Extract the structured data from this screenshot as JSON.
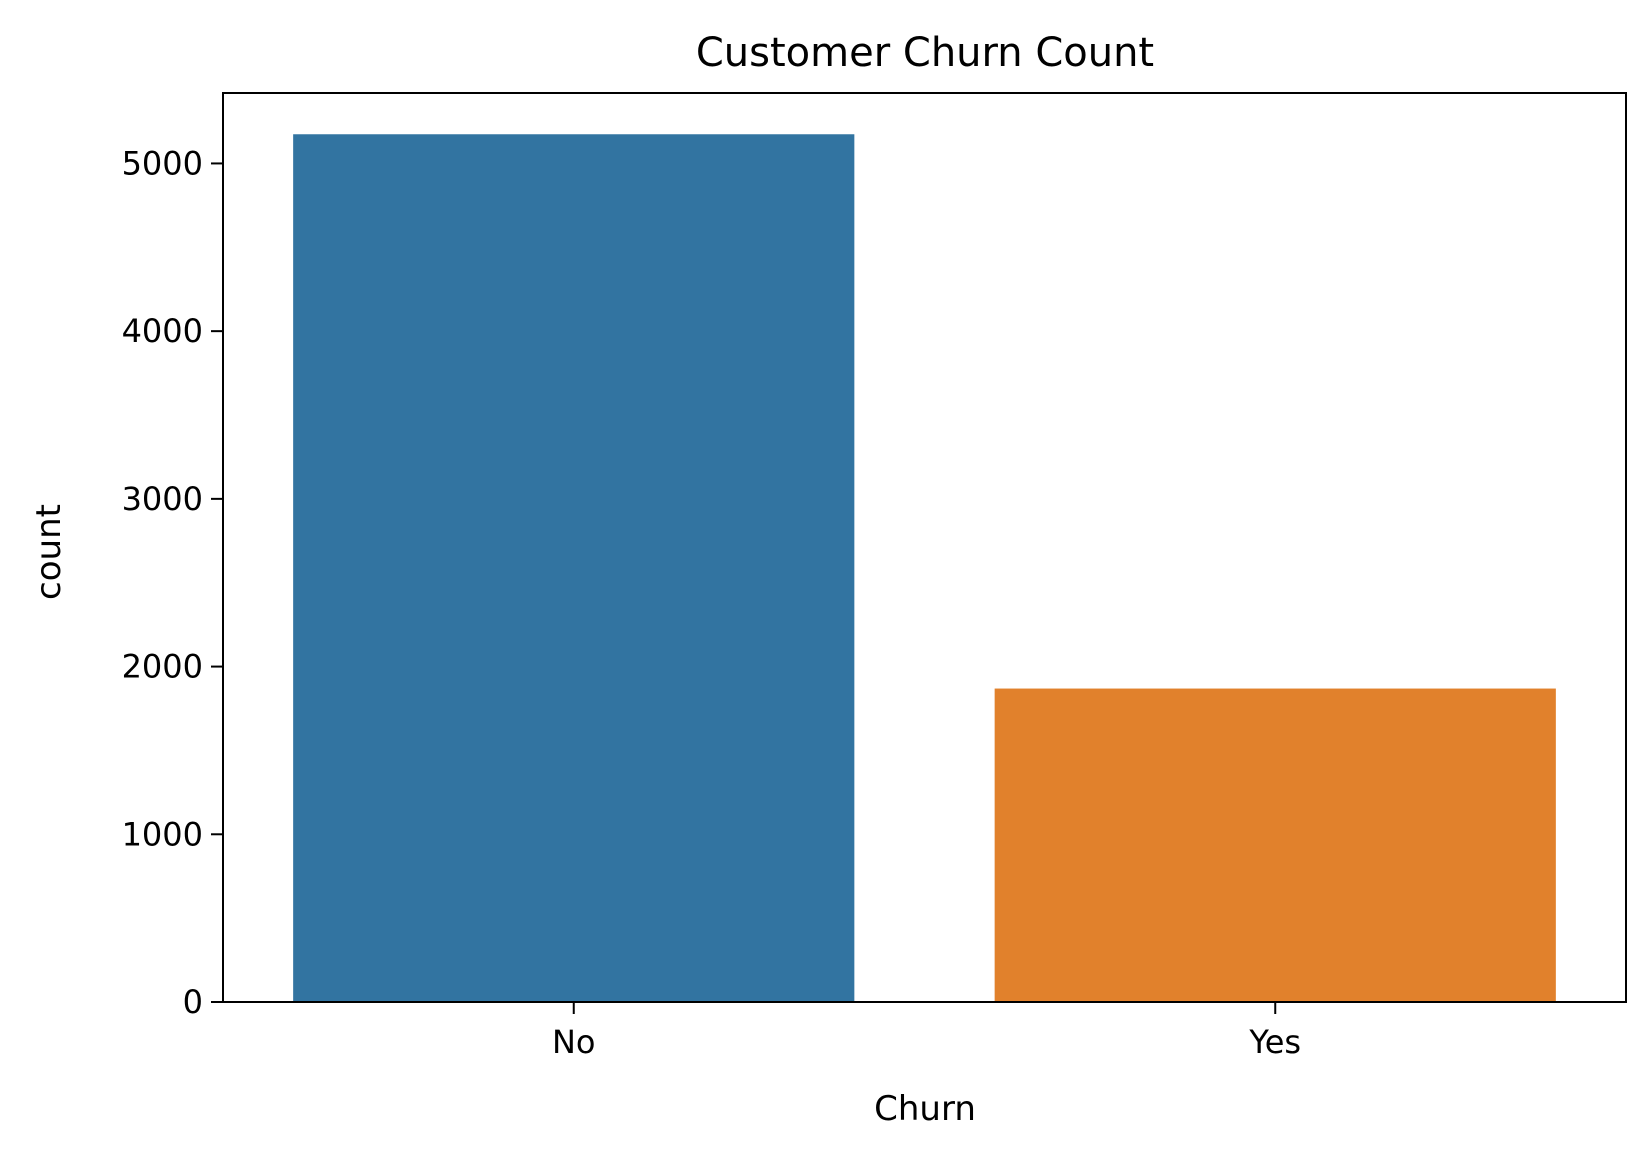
{
  "chart_data": {
    "type": "bar",
    "title": "Customer Churn Count",
    "xlabel": "Churn",
    "ylabel": "count",
    "categories": [
      "No",
      "Yes"
    ],
    "values": [
      5174,
      1869
    ],
    "colors": [
      "#3274a1",
      "#e1812c"
    ],
    "ylim": [
      0,
      5420
    ],
    "yticks": [
      0,
      1000,
      2000,
      3000,
      4000,
      5000
    ],
    "grid": false,
    "legend": "none"
  }
}
